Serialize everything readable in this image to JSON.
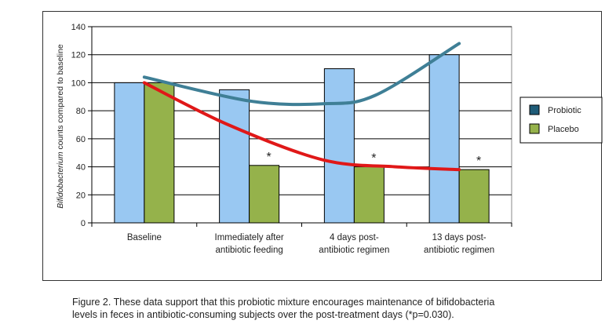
{
  "chart_data": {
    "type": "bar",
    "title": "",
    "ylabel_italic": "Bifidobacterium",
    "ylabel_rest": " counts compared to baseline",
    "xlabel": "",
    "ylim": [
      0,
      140
    ],
    "yticks": [
      0,
      20,
      40,
      60,
      80,
      100,
      120,
      140
    ],
    "grid": true,
    "categories": [
      [
        "Baseline"
      ],
      [
        "Immediately after",
        "antibiotic feeding"
      ],
      [
        "4 days post-",
        "antibiotic regimen"
      ],
      [
        "13 days post-",
        "antibiotic regimen"
      ]
    ],
    "series": [
      {
        "name": "Probiotic",
        "values": [
          100,
          95,
          110,
          120
        ],
        "color": "#99c8f2",
        "legend_color": "#1f5c78"
      },
      {
        "name": "Placebo",
        "values": [
          100,
          41,
          40,
          38
        ],
        "color": "#95b24b",
        "legend_color": "#95b24b"
      }
    ],
    "significance": [
      "",
      "*",
      "*",
      "*"
    ],
    "trend_lines": [
      {
        "name": "Probiotic trend",
        "color": "#3f7f96",
        "x": [
          0,
          1,
          1.7,
          2.2,
          3.0
        ],
        "y": [
          104,
          87,
          85,
          91,
          128
        ]
      },
      {
        "name": "Placebo trend",
        "color": "#e01818",
        "x": [
          0,
          0.8,
          1.7,
          2.4,
          3.0
        ],
        "y": [
          100,
          70,
          45,
          40,
          38
        ]
      }
    ],
    "legend_position": "right"
  },
  "caption": {
    "line1": "Figure 2. These data support that this probiotic mixture encourages maintenance of bifidobacteria",
    "line2": "levels in feces in antibiotic-consuming subjects over the post-treatment days (*p=0.030)."
  }
}
